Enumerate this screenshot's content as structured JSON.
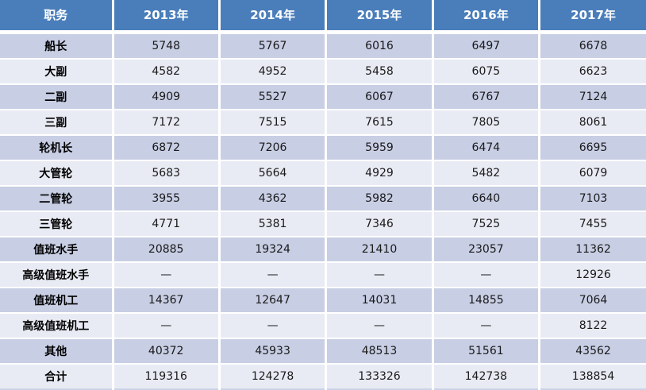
{
  "chart_data": {
    "type": "table",
    "columns": [
      "职务",
      "2013年",
      "2014年",
      "2015年",
      "2016年",
      "2017年"
    ],
    "rows": [
      {
        "label": "船长",
        "values": [
          "5748",
          "5767",
          "6016",
          "6497",
          "6678"
        ]
      },
      {
        "label": "大副",
        "values": [
          "4582",
          "4952",
          "5458",
          "6075",
          "6623"
        ]
      },
      {
        "label": "二副",
        "values": [
          "4909",
          "5527",
          "6067",
          "6767",
          "7124"
        ]
      },
      {
        "label": "三副",
        "values": [
          "7172",
          "7515",
          "7615",
          "7805",
          "8061"
        ]
      },
      {
        "label": "轮机长",
        "values": [
          "6872",
          "7206",
          "5959",
          "6474",
          "6695"
        ]
      },
      {
        "label": "大管轮",
        "values": [
          "5683",
          "5664",
          "4929",
          "5482",
          "6079"
        ]
      },
      {
        "label": "二管轮",
        "values": [
          "3955",
          "4362",
          "5982",
          "6640",
          "7103"
        ]
      },
      {
        "label": "三管轮",
        "values": [
          "4771",
          "5381",
          "7346",
          "7525",
          "7455"
        ]
      },
      {
        "label": "值班水手",
        "values": [
          "20885",
          "19324",
          "21410",
          "23057",
          "11362"
        ]
      },
      {
        "label": "高级值班水手",
        "values": [
          "—",
          "—",
          "—",
          "—",
          "12926"
        ]
      },
      {
        "label": "值班机工",
        "values": [
          "14367",
          "12647",
          "14031",
          "14855",
          "7064"
        ]
      },
      {
        "label": "高级值班机工",
        "values": [
          "—",
          "—",
          "—",
          "—",
          "8122"
        ]
      },
      {
        "label": "其他",
        "values": [
          "40372",
          "45933",
          "48513",
          "51561",
          "43562"
        ]
      },
      {
        "label": "合计",
        "values": [
          "119316",
          "124278",
          "133326",
          "142738",
          "138854"
        ]
      }
    ]
  },
  "colors": {
    "header_bg": "#4A7EBB",
    "header_text": "#FFFFFF",
    "row_dark": "#C8CEE4",
    "row_light": "#E9EBF4",
    "cell_text": "#1A1A1A",
    "divider": "#FFFFFF",
    "table_bottom_border": "#CDD3E6"
  }
}
